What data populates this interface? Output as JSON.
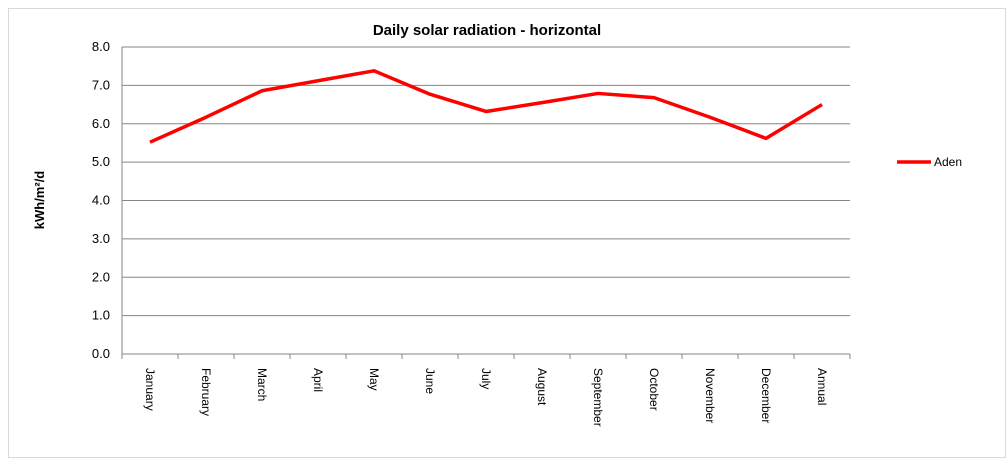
{
  "chart_data": {
    "type": "line",
    "title": "Daily solar radiation - horizontal",
    "y_label": "kWh/m²/d",
    "categories": [
      "January",
      "February",
      "March",
      "April",
      "May",
      "June",
      "July",
      "August",
      "September",
      "October",
      "November",
      "December",
      "Annual"
    ],
    "series": [
      {
        "name": "Aden",
        "color": "#ff0000",
        "values": [
          5.52,
          6.17,
          6.86,
          7.12,
          7.38,
          6.77,
          6.32,
          6.55,
          6.79,
          6.68,
          6.17,
          5.62,
          6.5
        ]
      }
    ],
    "ylim": [
      0,
      8
    ],
    "yticks": [
      {
        "value": 0,
        "label": "0.0"
      },
      {
        "value": 1,
        "label": "1.0"
      },
      {
        "value": 2,
        "label": "2.0"
      },
      {
        "value": 3,
        "label": "3.0"
      },
      {
        "value": 4,
        "label": "4.0"
      },
      {
        "value": 5,
        "label": "5.0"
      },
      {
        "value": 6,
        "label": "6.0"
      },
      {
        "value": 7,
        "label": "7.0"
      },
      {
        "value": 8,
        "label": "8.0"
      }
    ],
    "grid": true,
    "legend": "right"
  }
}
